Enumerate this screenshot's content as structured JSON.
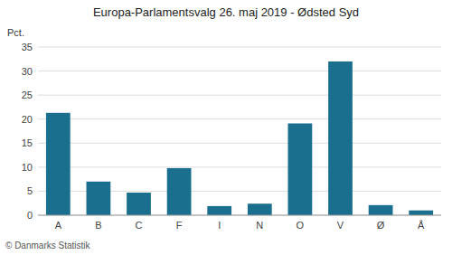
{
  "chart_data": {
    "type": "bar",
    "title": "Europa-Parlamentsvalg 26. maj 2019 - Ødsted Syd",
    "ylabel": "Pct.",
    "footer": "© Danmarks Statistik",
    "categories": [
      "A",
      "B",
      "C",
      "F",
      "I",
      "N",
      "O",
      "V",
      "Ø",
      "Å"
    ],
    "values": [
      21.3,
      7.0,
      4.7,
      9.8,
      1.9,
      2.4,
      19.1,
      32.0,
      2.1,
      1.0
    ],
    "color": "#1a6e8e",
    "ylim": [
      0,
      35
    ],
    "yticks": [
      0,
      5,
      10,
      15,
      20,
      25,
      30,
      35
    ],
    "grid": true
  }
}
